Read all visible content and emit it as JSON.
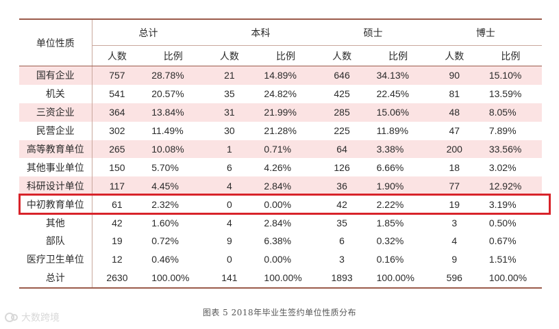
{
  "table": {
    "row_header": "单位性质",
    "groups": [
      "总计",
      "本科",
      "硕士",
      "博士"
    ],
    "sub_headers": [
      "人数",
      "比例"
    ],
    "rows": [
      {
        "label": "国有企业",
        "values": [
          "757",
          "28.78%",
          "21",
          "14.89%",
          "646",
          "34.13%",
          "90",
          "15.10%"
        ]
      },
      {
        "label": "机关",
        "values": [
          "541",
          "20.57%",
          "35",
          "24.82%",
          "425",
          "22.45%",
          "81",
          "13.59%"
        ]
      },
      {
        "label": "三资企业",
        "values": [
          "364",
          "13.84%",
          "31",
          "21.99%",
          "285",
          "15.06%",
          "48",
          "8.05%"
        ]
      },
      {
        "label": "民营企业",
        "values": [
          "302",
          "11.49%",
          "30",
          "21.28%",
          "225",
          "11.89%",
          "47",
          "7.89%"
        ]
      },
      {
        "label": "高等教育单位",
        "values": [
          "265",
          "10.08%",
          "1",
          "0.71%",
          "64",
          "3.38%",
          "200",
          "33.56%"
        ]
      },
      {
        "label": "其他事业单位",
        "values": [
          "150",
          "5.70%",
          "6",
          "4.26%",
          "126",
          "6.66%",
          "18",
          "3.02%"
        ]
      },
      {
        "label": "科研设计单位",
        "values": [
          "117",
          "4.45%",
          "4",
          "2.84%",
          "36",
          "1.90%",
          "77",
          "12.92%"
        ]
      },
      {
        "label": "中初教育单位",
        "values": [
          "61",
          "2.32%",
          "0",
          "0.00%",
          "42",
          "2.22%",
          "19",
          "3.19%"
        ]
      },
      {
        "label": "其他",
        "values": [
          "42",
          "1.60%",
          "4",
          "2.84%",
          "35",
          "1.85%",
          "3",
          "0.50%"
        ]
      },
      {
        "label": "部队",
        "values": [
          "19",
          "0.72%",
          "9",
          "6.38%",
          "6",
          "0.32%",
          "4",
          "0.67%"
        ]
      },
      {
        "label": "医疗卫生单位",
        "values": [
          "12",
          "0.46%",
          "0",
          "0.00%",
          "3",
          "0.16%",
          "9",
          "1.51%"
        ]
      },
      {
        "label": "总计",
        "values": [
          "2630",
          "100.00%",
          "141",
          "100.00%",
          "1893",
          "100.00%",
          "596",
          "100.00%"
        ]
      }
    ],
    "shaded_rows": [
      0,
      2,
      4,
      6
    ],
    "highlighted_row": 7
  },
  "caption": "图表 5   2018年毕业生签约单位性质分布",
  "watermark": "大数跨境",
  "colors": {
    "rule": "#9a5a4a",
    "shade": "#fbe3e3",
    "highlight": "#d8232a"
  }
}
